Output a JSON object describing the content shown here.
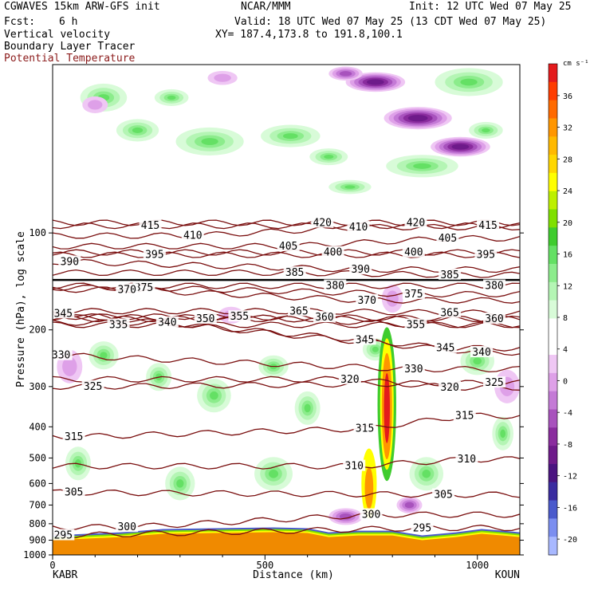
{
  "header": {
    "model": "CGWAVES 15km ARW-GFS init",
    "org": "NCAR/MMM",
    "init": "Init: 12 UTC Wed 07 May 25",
    "fcst_label": "Fcst:",
    "fcst_value": "6 h",
    "valid": "Valid: 18 UTC Wed 07 May 25 (13 CDT Wed 07 May 25)",
    "field1": "Vertical velocity",
    "xy": "XY= 187.4,173.8 to 191.8,100.1",
    "field2": "Boundary Layer Tracer",
    "field3": "Potential Temperature"
  },
  "colors": {
    "theta_contour": "#7a0f0f",
    "upward": "#33cc33",
    "downward": "#8a2c9e",
    "terrain": "#f08a00"
  },
  "chart_data": {
    "type": "heatmap",
    "title": "Vertical velocity",
    "ylabel": "Pressure (hPa), log scale",
    "xlabel": "Distance (km)",
    "x_ticks": [
      "0",
      "500",
      "1000"
    ],
    "y_ticks": [
      "100",
      "200",
      "300",
      "400",
      "500",
      "600",
      "700",
      "800",
      "900",
      "1000"
    ],
    "left_endpoint": "KABR",
    "right_endpoint": "KOUN",
    "xlim": [
      0,
      1100
    ],
    "ylim": [
      1000,
      30
    ],
    "y_scale": "log",
    "colorbar": {
      "unit": "cm s⁻¹",
      "ticks": [
        "36",
        "32",
        "28",
        "24",
        "20",
        "16",
        "12",
        "8",
        "4",
        "0",
        "-4",
        "-8",
        "-12",
        "-16",
        "-20"
      ],
      "colors": [
        "#e41a1c",
        "#fe3c00",
        "#ff6a00",
        "#ff9600",
        "#ffb900",
        "#ffd700",
        "#ffff00",
        "#bdf000",
        "#7fe000",
        "#3fcc2e",
        "#64e064",
        "#8cec8c",
        "#b4f5b4",
        "#d8fbd8",
        "#ffffff",
        "#ffffff",
        "#efc7f4",
        "#dea0e8",
        "#c47ad6",
        "#a852bd",
        "#8a2c9e",
        "#6e1a8a",
        "#4a1480",
        "#3a2ca0",
        "#4a5acc",
        "#7b8ef0",
        "#a8b8ff"
      ]
    },
    "theta_labels": [
      {
        "value": "415",
        "x": 230,
        "p": 95
      },
      {
        "value": "420",
        "x": 635,
        "p": 93
      },
      {
        "value": "410",
        "x": 720,
        "p": 96
      },
      {
        "value": "420",
        "x": 855,
        "p": 93
      },
      {
        "value": "415",
        "x": 1025,
        "p": 95
      },
      {
        "value": "410",
        "x": 330,
        "p": 102
      },
      {
        "value": "405",
        "x": 555,
        "p": 110
      },
      {
        "value": "405",
        "x": 930,
        "p": 104
      },
      {
        "value": "390",
        "x": 40,
        "p": 123
      },
      {
        "value": "395",
        "x": 240,
        "p": 117
      },
      {
        "value": "400",
        "x": 660,
        "p": 115
      },
      {
        "value": "400",
        "x": 850,
        "p": 115
      },
      {
        "value": "395",
        "x": 1020,
        "p": 117
      },
      {
        "value": "390",
        "x": 725,
        "p": 130
      },
      {
        "value": "385",
        "x": 570,
        "p": 133
      },
      {
        "value": "385",
        "x": 935,
        "p": 135
      },
      {
        "value": "380",
        "x": 665,
        "p": 146
      },
      {
        "value": "380",
        "x": 1040,
        "p": 146
      },
      {
        "value": "375",
        "x": 850,
        "p": 155
      },
      {
        "value": "370",
        "x": 740,
        "p": 162
      },
      {
        "value": "375",
        "x": 215,
        "p": 148
      },
      {
        "value": "370",
        "x": 175,
        "p": 150
      },
      {
        "value": "345",
        "x": 25,
        "p": 178
      },
      {
        "value": "335",
        "x": 155,
        "p": 193
      },
      {
        "value": "340",
        "x": 270,
        "p": 190
      },
      {
        "value": "350",
        "x": 360,
        "p": 185
      },
      {
        "value": "355",
        "x": 440,
        "p": 182
      },
      {
        "value": "365",
        "x": 580,
        "p": 175
      },
      {
        "value": "360",
        "x": 640,
        "p": 183
      },
      {
        "value": "355",
        "x": 855,
        "p": 193
      },
      {
        "value": "365",
        "x": 935,
        "p": 177
      },
      {
        "value": "360",
        "x": 1040,
        "p": 185
      },
      {
        "value": "345",
        "x": 735,
        "p": 215
      },
      {
        "value": "340",
        "x": 1010,
        "p": 235
      },
      {
        "value": "345",
        "x": 925,
        "p": 228
      },
      {
        "value": "330",
        "x": 20,
        "p": 240
      },
      {
        "value": "330",
        "x": 850,
        "p": 265
      },
      {
        "value": "325",
        "x": 95,
        "p": 300
      },
      {
        "value": "320",
        "x": 700,
        "p": 285
      },
      {
        "value": "320",
        "x": 935,
        "p": 302
      },
      {
        "value": "325",
        "x": 1040,
        "p": 292
      },
      {
        "value": "315",
        "x": 50,
        "p": 430
      },
      {
        "value": "315",
        "x": 735,
        "p": 405
      },
      {
        "value": "315",
        "x": 970,
        "p": 370
      },
      {
        "value": "310",
        "x": 710,
        "p": 530
      },
      {
        "value": "310",
        "x": 975,
        "p": 505
      },
      {
        "value": "305",
        "x": 50,
        "p": 640
      },
      {
        "value": "305",
        "x": 920,
        "p": 650
      },
      {
        "value": "300",
        "x": 175,
        "p": 820
      },
      {
        "value": "300",
        "x": 750,
        "p": 750
      },
      {
        "value": "295",
        "x": 25,
        "p": 870
      },
      {
        "value": "295",
        "x": 870,
        "p": 825
      }
    ],
    "green_blobs": [
      {
        "x": 120,
        "p": 38,
        "rx": 55,
        "dp": 0.1
      },
      {
        "x": 200,
        "p": 48,
        "rx": 50,
        "dp": 0.08
      },
      {
        "x": 280,
        "p": 38,
        "rx": 40,
        "dp": 0.06
      },
      {
        "x": 370,
        "p": 52,
        "rx": 80,
        "dp": 0.1
      },
      {
        "x": 560,
        "p": 50,
        "rx": 70,
        "dp": 0.08
      },
      {
        "x": 650,
        "p": 58,
        "rx": 45,
        "dp": 0.06
      },
      {
        "x": 980,
        "p": 34,
        "rx": 80,
        "dp": 0.1
      },
      {
        "x": 870,
        "p": 62,
        "rx": 85,
        "dp": 0.08
      },
      {
        "x": 1020,
        "p": 48,
        "rx": 40,
        "dp": 0.06
      },
      {
        "x": 700,
        "p": 72,
        "rx": 50,
        "dp": 0.05
      },
      {
        "x": 120,
        "p": 240,
        "rx": 35,
        "dp": 0.1
      },
      {
        "x": 250,
        "p": 280,
        "rx": 30,
        "dp": 0.1
      },
      {
        "x": 380,
        "p": 320,
        "rx": 40,
        "dp": 0.12
      },
      {
        "x": 520,
        "p": 260,
        "rx": 35,
        "dp": 0.08
      },
      {
        "x": 600,
        "p": 350,
        "rx": 30,
        "dp": 0.12
      },
      {
        "x": 760,
        "p": 230,
        "rx": 30,
        "dp": 0.08
      },
      {
        "x": 1000,
        "p": 250,
        "rx": 40,
        "dp": 0.1
      },
      {
        "x": 60,
        "p": 520,
        "rx": 30,
        "dp": 0.12
      },
      {
        "x": 300,
        "p": 600,
        "rx": 35,
        "dp": 0.12
      },
      {
        "x": 520,
        "p": 560,
        "rx": 45,
        "dp": 0.12
      },
      {
        "x": 880,
        "p": 560,
        "rx": 40,
        "dp": 0.12
      },
      {
        "x": 1060,
        "p": 420,
        "rx": 25,
        "dp": 0.12
      }
    ],
    "purple_blobs": [
      {
        "x": 760,
        "p": 34,
        "rx": 70,
        "dp": 0.07,
        "level": 3
      },
      {
        "x": 860,
        "p": 44,
        "rx": 80,
        "dp": 0.08,
        "level": 3
      },
      {
        "x": 960,
        "p": 54,
        "rx": 70,
        "dp": 0.07,
        "level": 3
      },
      {
        "x": 690,
        "p": 32,
        "rx": 40,
        "dp": 0.05,
        "level": 2
      },
      {
        "x": 400,
        "p": 33,
        "rx": 35,
        "dp": 0.05,
        "level": 1
      },
      {
        "x": 100,
        "p": 40,
        "rx": 30,
        "dp": 0.06,
        "level": 1
      },
      {
        "x": 40,
        "p": 260,
        "rx": 30,
        "dp": 0.12,
        "level": 1
      },
      {
        "x": 420,
        "p": 180,
        "rx": 30,
        "dp": 0.06,
        "level": 1
      },
      {
        "x": 800,
        "p": 160,
        "rx": 25,
        "dp": 0.1,
        "level": 1
      },
      {
        "x": 1070,
        "p": 300,
        "rx": 30,
        "dp": 0.12,
        "level": 1
      },
      {
        "x": 690,
        "p": 760,
        "rx": 40,
        "dp": 0.06,
        "level": 2
      },
      {
        "x": 840,
        "p": 700,
        "rx": 30,
        "dp": 0.06,
        "level": 2
      }
    ],
    "updraft": [
      {
        "x": 787,
        "p": 340,
        "rx": 22,
        "dp": 0.55,
        "color": "#3fcc2e"
      },
      {
        "x": 787,
        "p": 340,
        "rx": 16,
        "dp": 0.47,
        "color": "#ffff00"
      },
      {
        "x": 787,
        "p": 345,
        "rx": 12,
        "dp": 0.38,
        "color": "#ff9600"
      },
      {
        "x": 787,
        "p": 350,
        "rx": 7,
        "dp": 0.25,
        "color": "#e41a1c"
      },
      {
        "x": 745,
        "p": 600,
        "rx": 18,
        "dp": 0.25,
        "color": "#ffff00"
      },
      {
        "x": 745,
        "p": 620,
        "rx": 10,
        "dp": 0.15,
        "color": "#ff9600"
      }
    ],
    "terrain_p": [
      [
        0,
        900
      ],
      [
        80,
        890
      ],
      [
        160,
        880
      ],
      [
        260,
        860
      ],
      [
        380,
        855
      ],
      [
        520,
        850
      ],
      [
        600,
        855
      ],
      [
        650,
        880
      ],
      [
        720,
        870
      ],
      [
        800,
        870
      ],
      [
        870,
        900
      ],
      [
        950,
        880
      ],
      [
        1010,
        860
      ],
      [
        1060,
        870
      ],
      [
        1100,
        880
      ]
    ]
  }
}
